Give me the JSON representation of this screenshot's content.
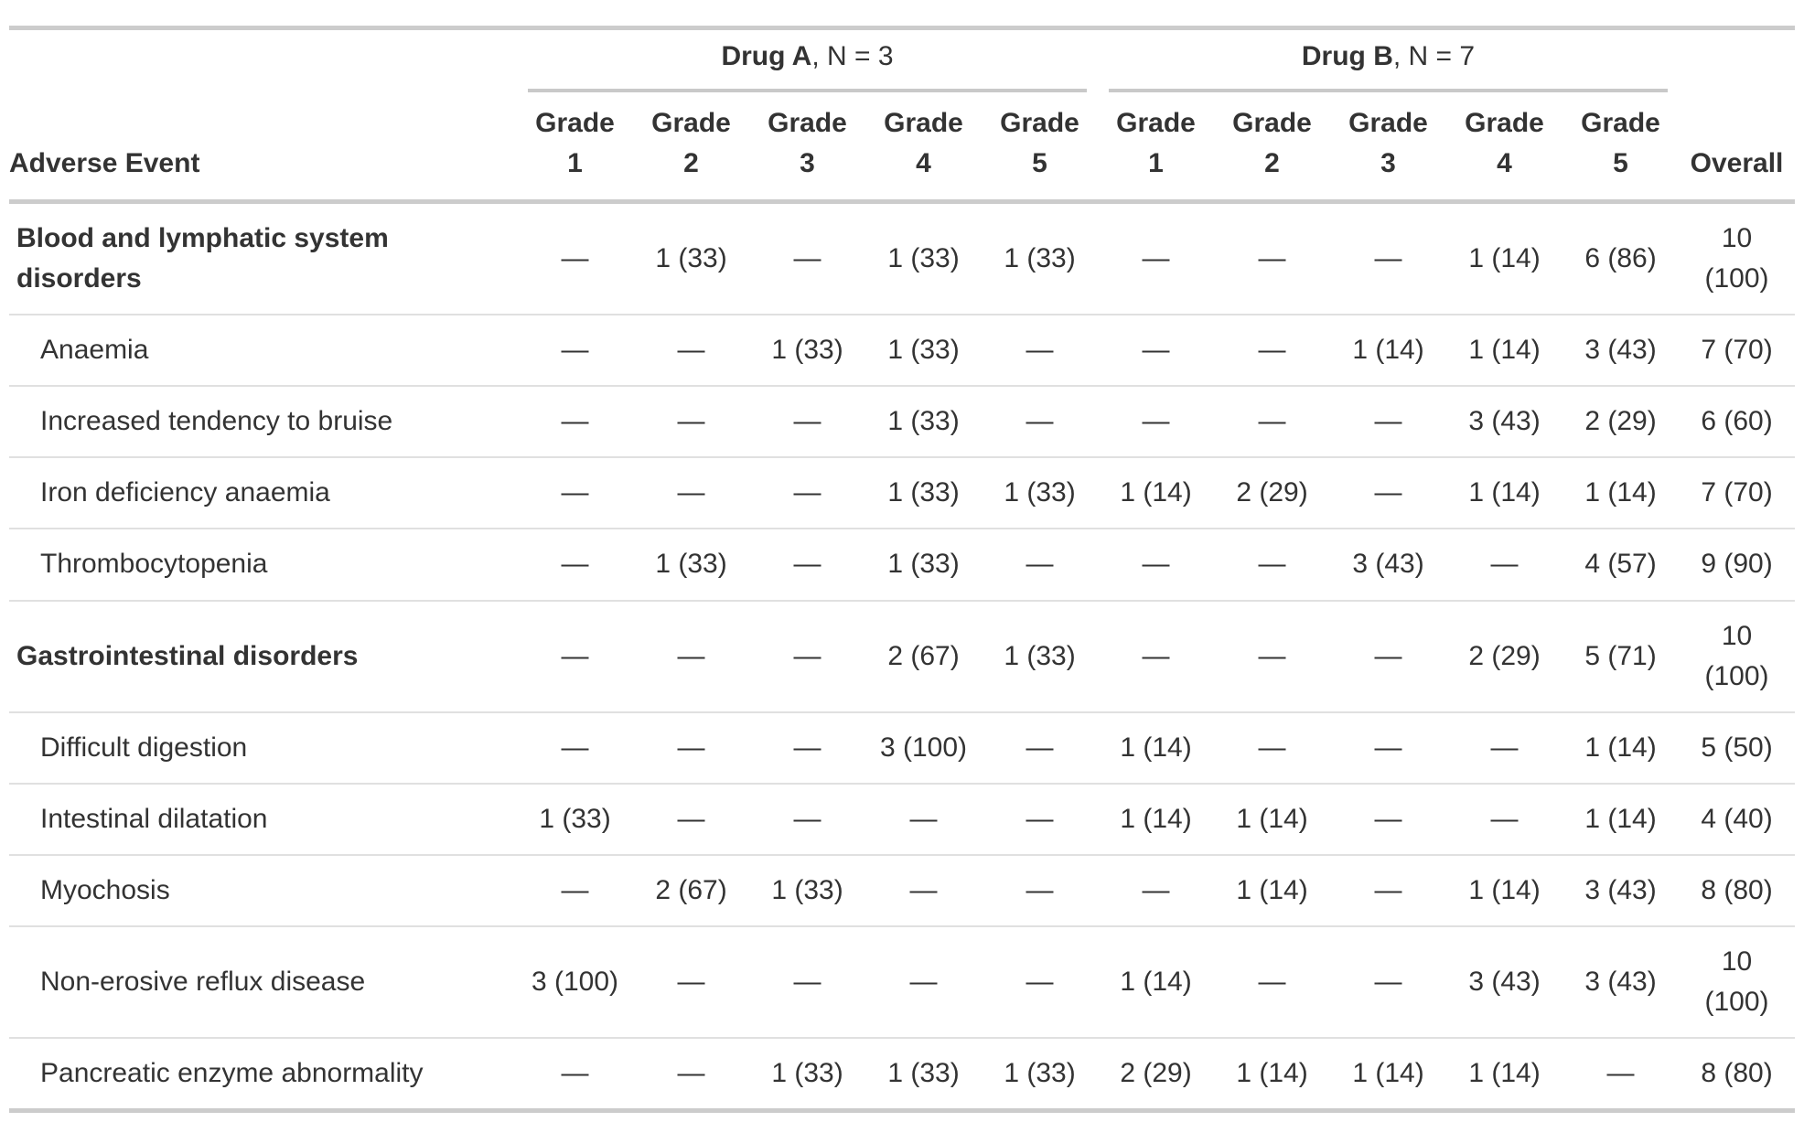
{
  "table": {
    "adverse_event_header": "Adverse Event",
    "overall_header": "Overall",
    "groups": [
      {
        "name": "Drug A",
        "suffix": ", N = 3"
      },
      {
        "name": "Drug B",
        "suffix": ", N = 7"
      }
    ],
    "grade_cols": [
      "Grade\n1",
      "Grade\n2",
      "Grade\n3",
      "Grade\n4",
      "Grade\n5",
      "Grade\n1",
      "Grade\n2",
      "Grade\n3",
      "Grade\n4",
      "Grade\n5"
    ],
    "rows": [
      {
        "label": "Blood and lymphatic system disorders",
        "category": true,
        "values": [
          "—",
          "1 (33)",
          "—",
          "1 (33)",
          "1 (33)",
          "—",
          "—",
          "—",
          "1 (14)",
          "6 (86)",
          "10 (100)"
        ]
      },
      {
        "label": "Anaemia",
        "category": false,
        "values": [
          "—",
          "—",
          "1 (33)",
          "1 (33)",
          "—",
          "—",
          "—",
          "1 (14)",
          "1 (14)",
          "3 (43)",
          "7 (70)"
        ]
      },
      {
        "label": "Increased tendency to bruise",
        "category": false,
        "values": [
          "—",
          "—",
          "—",
          "1 (33)",
          "—",
          "—",
          "—",
          "—",
          "3 (43)",
          "2 (29)",
          "6 (60)"
        ]
      },
      {
        "label": "Iron deficiency anaemia",
        "category": false,
        "values": [
          "—",
          "—",
          "—",
          "1 (33)",
          "1 (33)",
          "1 (14)",
          "2 (29)",
          "—",
          "1 (14)",
          "1 (14)",
          "7 (70)"
        ]
      },
      {
        "label": "Thrombocytopenia",
        "category": false,
        "values": [
          "—",
          "1 (33)",
          "—",
          "1 (33)",
          "—",
          "—",
          "—",
          "3 (43)",
          "—",
          "4 (57)",
          "9 (90)"
        ]
      },
      {
        "label": "Gastrointestinal disorders",
        "category": true,
        "values": [
          "—",
          "—",
          "—",
          "2 (67)",
          "1 (33)",
          "—",
          "—",
          "—",
          "2 (29)",
          "5 (71)",
          "10 (100)"
        ]
      },
      {
        "label": "Difficult digestion",
        "category": false,
        "values": [
          "—",
          "—",
          "—",
          "3 (100)",
          "—",
          "1 (14)",
          "—",
          "—",
          "—",
          "1 (14)",
          "5 (50)"
        ]
      },
      {
        "label": "Intestinal dilatation",
        "category": false,
        "values": [
          "1 (33)",
          "—",
          "—",
          "—",
          "—",
          "1 (14)",
          "1 (14)",
          "—",
          "—",
          "1 (14)",
          "4 (40)"
        ]
      },
      {
        "label": "Myochosis",
        "category": false,
        "values": [
          "—",
          "2 (67)",
          "1 (33)",
          "—",
          "—",
          "—",
          "1 (14)",
          "—",
          "1 (14)",
          "3 (43)",
          "8 (80)"
        ]
      },
      {
        "label": "Non-erosive reflux disease",
        "category": false,
        "values": [
          "3 (100)",
          "—",
          "—",
          "—",
          "—",
          "1 (14)",
          "—",
          "—",
          "3 (43)",
          "3 (43)",
          "10 (100)"
        ]
      },
      {
        "label": "Pancreatic enzyme abnormality",
        "category": false,
        "values": [
          "—",
          "—",
          "1 (33)",
          "1 (33)",
          "1 (33)",
          "2 (29)",
          "1 (14)",
          "1 (14)",
          "1 (14)",
          "—",
          "8 (80)"
        ]
      }
    ],
    "colors": {
      "text": "#333333",
      "heavy_border": "#cccccc",
      "light_border": "#e0e0e0"
    }
  }
}
